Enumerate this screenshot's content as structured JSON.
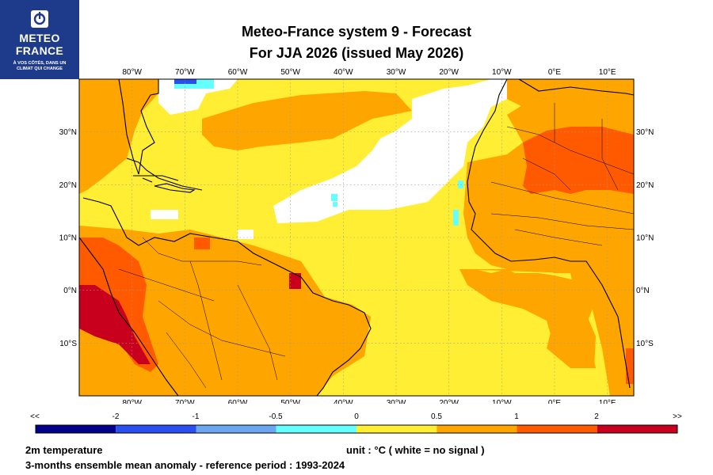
{
  "logo": {
    "name_line1": "METEO",
    "name_line2": "FRANCE",
    "tagline_line1": "À VOS CÔTÉS, DANS UN",
    "tagline_line2": "CLIMAT QUI CHANGE",
    "icon": "meteo-france-logo-mark",
    "bg_color": "#1e3a8a"
  },
  "title": {
    "line1": "Meteo-France system 9  -  Forecast",
    "line2": "For JJA 2026      (issued May 2026)"
  },
  "map": {
    "lon_range": [
      -90,
      15
    ],
    "lat_range": [
      -20,
      40
    ],
    "lon_ticks": [
      "80°W",
      "70°W",
      "60°W",
      "50°W",
      "40°W",
      "30°W",
      "20°W",
      "10°W",
      "0°E",
      "10°E"
    ],
    "lat_ticks": [
      "30°N",
      "20°N",
      "10°N",
      "0°N",
      "10°S"
    ],
    "grid": true
  },
  "colorbar": {
    "labels": [
      "<<",
      "-2",
      "-1",
      "-0.5",
      "0",
      "0.5",
      "1",
      "2",
      ">>"
    ],
    "colors": [
      "#00008b",
      "#2a4ff0",
      "#6ca6f0",
      "#66ffff",
      "#ffee33",
      "#ffa500",
      "#ff5a00",
      "#c8001e"
    ]
  },
  "footer": {
    "variable": "2m temperature",
    "description": "3-months ensemble mean anomaly - reference period : 1993-2024",
    "unit": "unit : °C  ( white = no signal )"
  }
}
